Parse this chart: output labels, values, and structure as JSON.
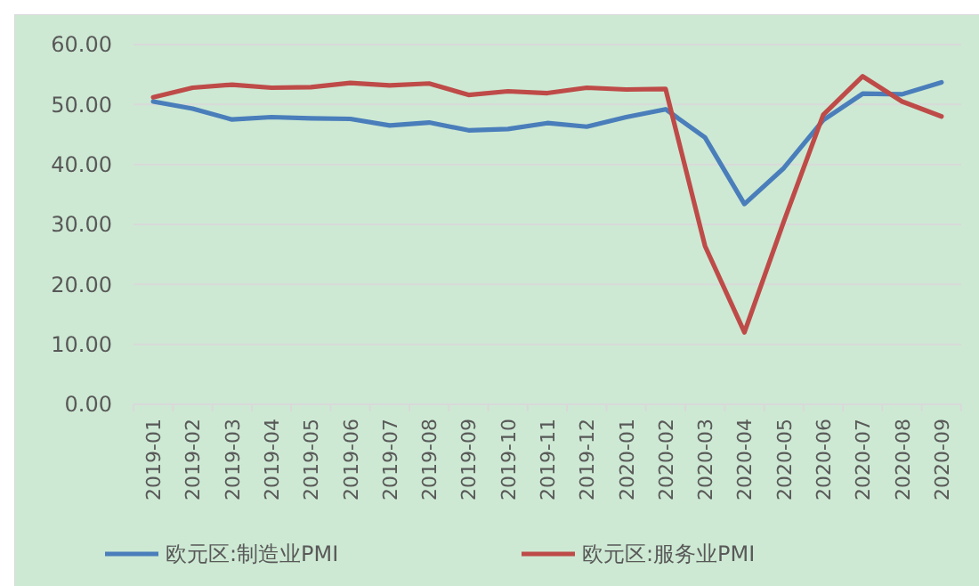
{
  "chart_data": {
    "type": "line",
    "categories": [
      "2019-01",
      "2019-02",
      "2019-03",
      "2019-04",
      "2019-05",
      "2019-06",
      "2019-07",
      "2019-08",
      "2019-09",
      "2019-10",
      "2019-11",
      "2019-12",
      "2020-01",
      "2020-02",
      "2020-03",
      "2020-04",
      "2020-05",
      "2020-06",
      "2020-07",
      "2020-08",
      "2020-09"
    ],
    "series": [
      {
        "name": "欧元区:制造业PMI",
        "color": "#4a7ebb",
        "values": [
          50.5,
          49.3,
          47.5,
          47.9,
          47.7,
          47.6,
          46.5,
          47.0,
          45.7,
          45.9,
          46.9,
          46.3,
          47.9,
          49.2,
          44.5,
          33.4,
          39.4,
          47.4,
          51.8,
          51.7,
          53.7
        ]
      },
      {
        "name": "欧元区:服务业PMI",
        "color": "#be4b48",
        "values": [
          51.2,
          52.8,
          53.3,
          52.8,
          52.9,
          53.6,
          53.2,
          53.5,
          51.6,
          52.2,
          51.9,
          52.8,
          52.5,
          52.6,
          26.4,
          12.0,
          30.5,
          48.3,
          54.7,
          50.5,
          48.0
        ]
      }
    ],
    "ylim": [
      0,
      60
    ],
    "yticks": [
      {
        "value": 0,
        "label": "0.00"
      },
      {
        "value": 10,
        "label": "10.00"
      },
      {
        "value": 20,
        "label": "20.00"
      },
      {
        "value": 30,
        "label": "30.00"
      },
      {
        "value": 40,
        "label": "40.00"
      },
      {
        "value": 50,
        "label": "50.00"
      },
      {
        "value": 60,
        "label": "60.00"
      }
    ],
    "grid": "y",
    "legend": "bottom",
    "marker": "none",
    "line_style": "solid"
  }
}
